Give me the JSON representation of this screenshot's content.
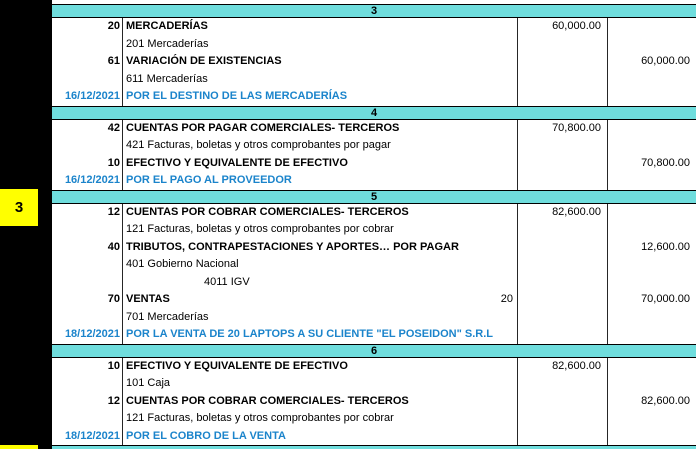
{
  "marker": {
    "label": "3"
  },
  "colors": {
    "teal": "#6fdddd",
    "blue": "#1b84cb",
    "yellow": "#ffff00",
    "black": "#000000"
  },
  "columns": {
    "date": "",
    "description": "",
    "debit": "",
    "credit": ""
  },
  "entries": [
    {
      "number": "3",
      "rows": [
        {
          "kind": "account",
          "code": "20",
          "name": "MERCADERÍAS",
          "debit": "60,000.00",
          "credit": ""
        },
        {
          "kind": "detail",
          "text": "201 Mercaderías"
        },
        {
          "kind": "account",
          "code": "61",
          "name": "VARIACIÓN DE EXISTENCIAS",
          "debit": "",
          "credit": "60,000.00"
        },
        {
          "kind": "detail",
          "text": "611 Mercaderías"
        },
        {
          "kind": "gloss",
          "date": "16/12/2021",
          "text": "POR EL DESTINO DE LAS MERCADERÍAS"
        }
      ]
    },
    {
      "number": "4",
      "rows": [
        {
          "kind": "account",
          "code": "42",
          "name": "CUENTAS POR PAGAR COMERCIALES- TERCEROS",
          "debit": "70,800.00",
          "credit": ""
        },
        {
          "kind": "detail",
          "text": "421 Facturas, boletas y otros comprobantes por pagar"
        },
        {
          "kind": "account",
          "code": "10",
          "name": "EFECTIVO Y EQUIVALENTE DE EFECTIVO",
          "debit": "",
          "credit": "70,800.00"
        },
        {
          "kind": "gloss",
          "date": "16/12/2021",
          "text": "POR EL PAGO AL PROVEEDOR"
        }
      ]
    },
    {
      "number": "5",
      "rows": [
        {
          "kind": "account",
          "code": "12",
          "name": "CUENTAS POR COBRAR COMERCIALES- TERCEROS",
          "debit": "82,600.00",
          "credit": ""
        },
        {
          "kind": "detail",
          "text": "121 Facturas, boletas y otros comprobantes por cobrar"
        },
        {
          "kind": "account",
          "code": "40",
          "name": "TRIBUTOS, CONTRAPESTACIONES Y APORTES… POR PAGAR",
          "debit": "",
          "credit": "12,600.00"
        },
        {
          "kind": "detail",
          "text": "401 Gobierno Nacional"
        },
        {
          "kind": "detail",
          "text": "4011 IGV",
          "indent": true
        },
        {
          "kind": "account",
          "code": "70",
          "name": "VENTAS",
          "qty": "20",
          "debit": "",
          "credit": "70,000.00"
        },
        {
          "kind": "detail",
          "text": "701 Mercaderías"
        },
        {
          "kind": "gloss",
          "date": "18/12/2021",
          "text": "POR LA VENTA DE 20 LAPTOPS A SU CLIENTE \"EL POSEIDON\" S.R.L"
        }
      ]
    },
    {
      "number": "6",
      "rows": [
        {
          "kind": "account",
          "code": "10",
          "name": "EFECTIVO Y EQUIVALENTE DE EFECTIVO",
          "debit": "82,600.00",
          "credit": ""
        },
        {
          "kind": "detail",
          "text": "101 Caja"
        },
        {
          "kind": "account",
          "code": "12",
          "name": "CUENTAS POR COBRAR COMERCIALES- TERCEROS",
          "debit": "",
          "credit": "82,600.00"
        },
        {
          "kind": "detail",
          "text": "121 Facturas, boletas y otros comprobantes por cobrar"
        },
        {
          "kind": "gloss",
          "date": "18/12/2021",
          "text": "POR EL COBRO DE LA VENTA"
        }
      ]
    }
  ]
}
